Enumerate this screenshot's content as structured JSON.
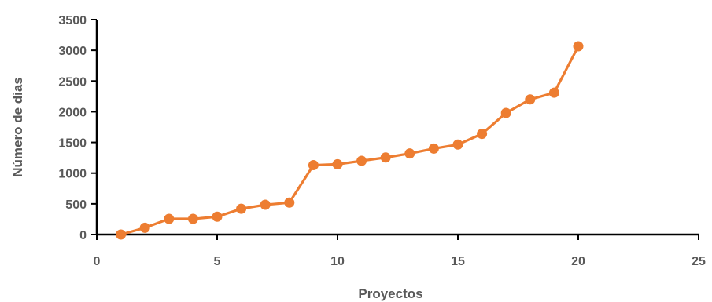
{
  "chart_data": {
    "type": "scatter",
    "title": "",
    "xlabel": "Proyectos",
    "ylabel": "Número de dias",
    "xlim": [
      0,
      25
    ],
    "ylim": [
      0,
      3500
    ],
    "x_ticks": [
      "0",
      "5",
      "10",
      "15",
      "20",
      "25"
    ],
    "y_ticks": [
      "0",
      "500",
      "1000",
      "1500",
      "2000",
      "2500",
      "3000",
      "3500"
    ],
    "grid": false,
    "legend": "none",
    "series": [
      {
        "color": "#ED7D31",
        "line": true,
        "markers": true,
        "x": [
          1,
          2,
          3,
          4,
          5,
          6,
          7,
          8,
          9,
          10,
          11,
          12,
          13,
          14,
          15,
          16,
          17,
          18,
          19,
          20
        ],
        "y": [
          0,
          110,
          255,
          255,
          290,
          420,
          485,
          520,
          1130,
          1145,
          1200,
          1255,
          1320,
          1400,
          1465,
          1640,
          1980,
          2200,
          2310,
          3065
        ]
      }
    ]
  }
}
